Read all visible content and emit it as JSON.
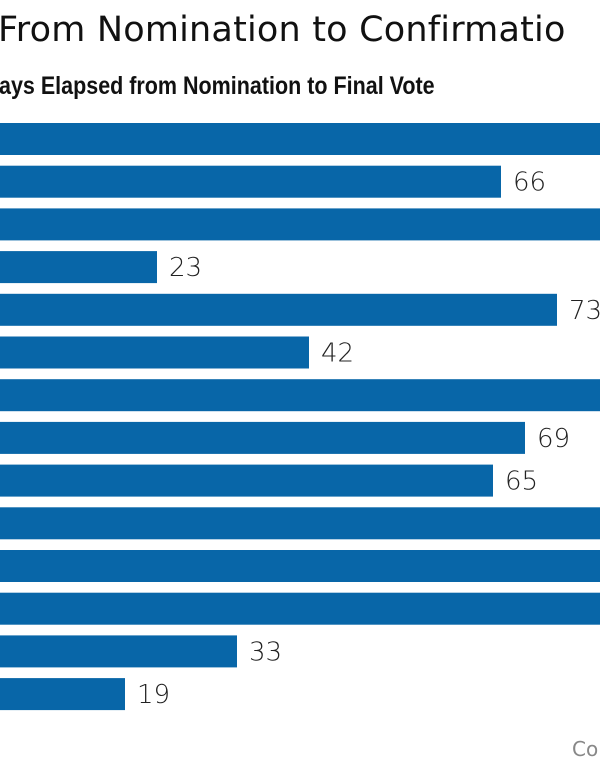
{
  "title": "From Nomination to Confirmatio",
  "subtitle": "ays Elapsed from Nomination to Final Vote",
  "footer": "Co",
  "colors": {
    "bar": "#0866a8",
    "label": "#222222"
  },
  "chart_data": {
    "type": "bar",
    "orientation": "horizontal",
    "title": "From Nomination to Confirmatio",
    "subtitle": "ays Elapsed from Nomination to Final Vote",
    "values": [
      null,
      66,
      null,
      23,
      73,
      42,
      null,
      69,
      65,
      null,
      null,
      null,
      33,
      19
    ],
    "labels": [
      "",
      "66",
      "",
      "23",
      "73",
      "42",
      "",
      "69",
      "65",
      "",
      "",
      "",
      "33",
      "19"
    ],
    "note_null": "bar extends beyond visible area; value not visible",
    "grid": false
  }
}
